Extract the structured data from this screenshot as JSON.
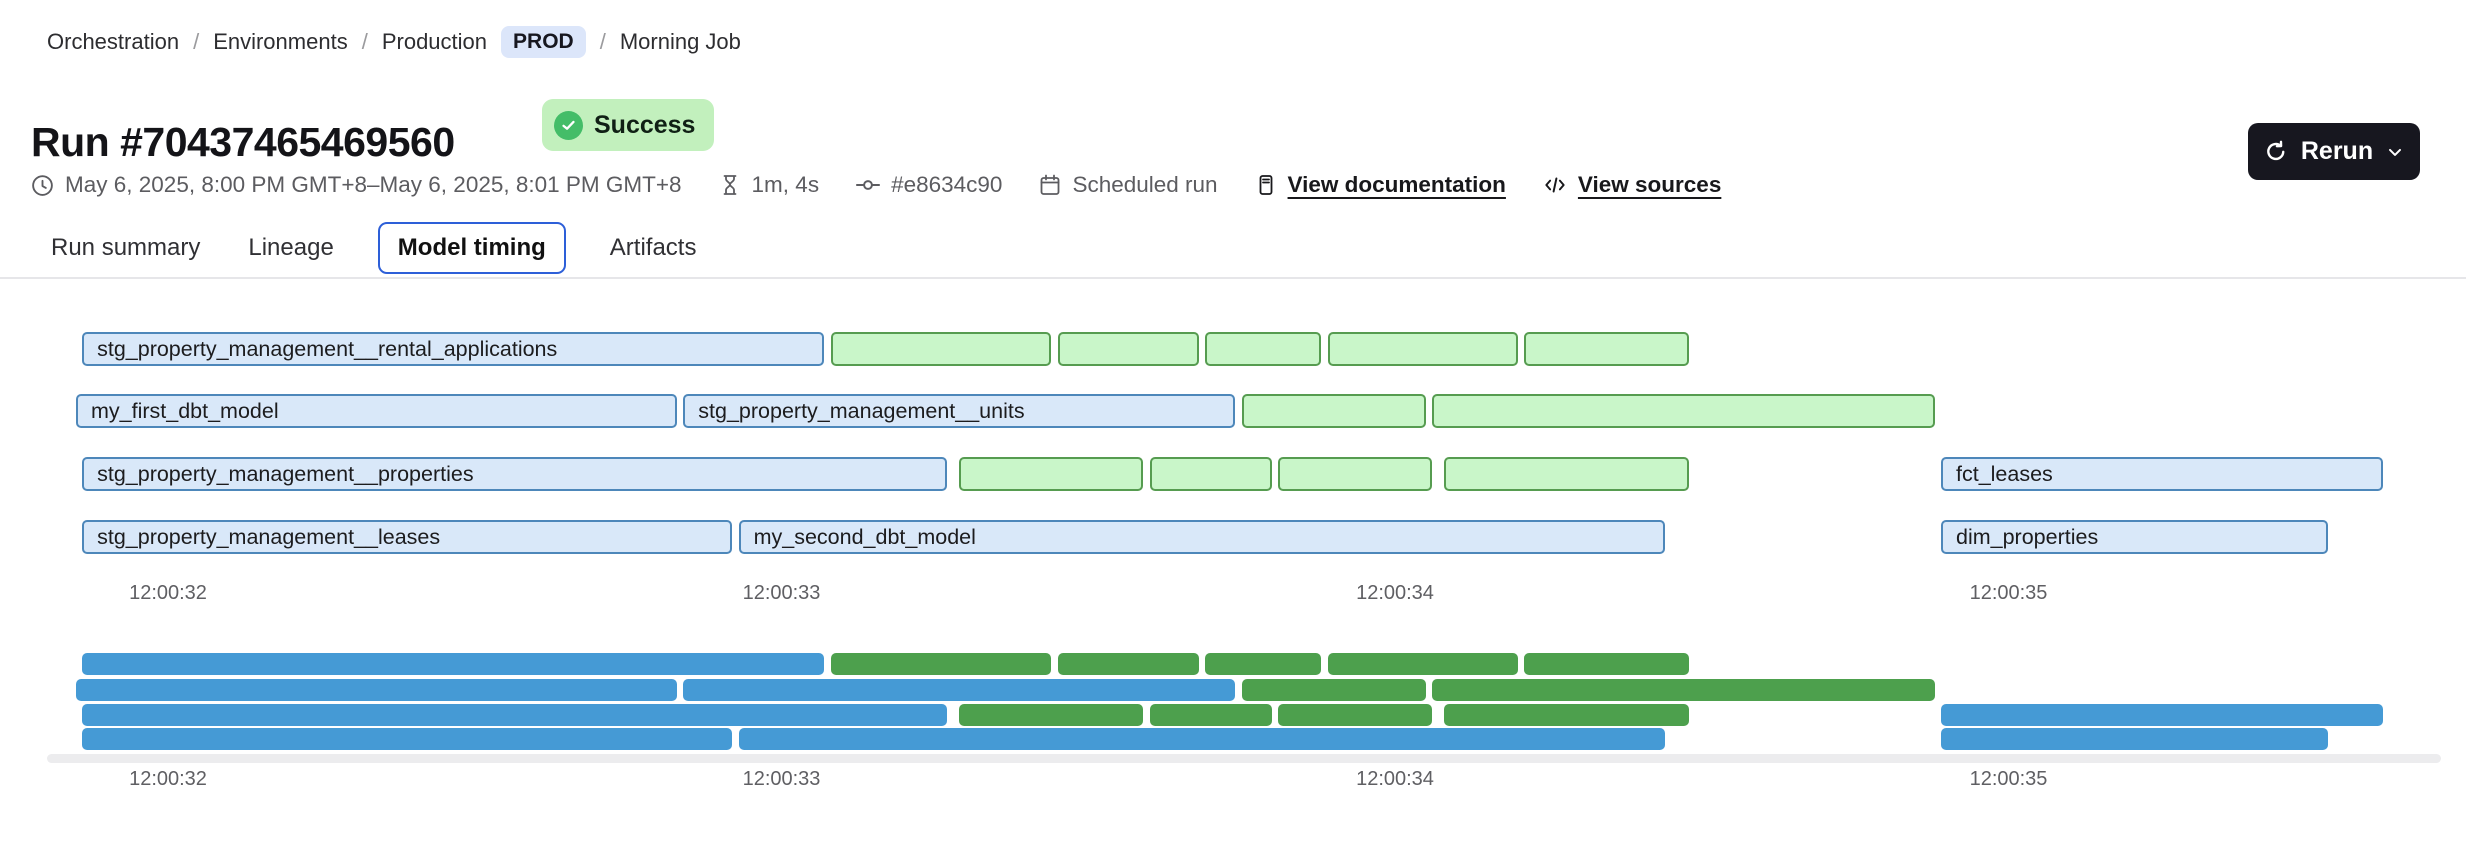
{
  "breadcrumb": {
    "separator": "/",
    "orchestration": "Orchestration",
    "environments": "Environments",
    "production": "Production",
    "prod_badge": "PROD",
    "job": "Morning Job"
  },
  "header": {
    "title": "Run #70437465469560",
    "status": "Success",
    "rerun": "Rerun"
  },
  "meta": {
    "time_range": "May 6, 2025, 8:00 PM GMT+8–May 6, 2025, 8:01 PM GMT+8",
    "duration": "1m, 4s",
    "commit_sha": "#e8634c90",
    "trigger": "Scheduled run",
    "view_documentation": "View documentation",
    "view_sources": "View sources"
  },
  "tabs": [
    {
      "label": "Run summary",
      "active": false
    },
    {
      "label": "Lineage",
      "active": false
    },
    {
      "label": "Model timing",
      "active": true
    },
    {
      "label": "Artifacts",
      "active": false
    }
  ],
  "colors": {
    "model_bar_fill": "#d9e8f9",
    "model_bar_border": "#4d87ba",
    "test_bar_fill": "#c9f6c9",
    "test_bar_border": "#569c50",
    "minimap_model": "#459ad5",
    "minimap_test": "#4da04d",
    "active_tab_border": "#2d5fd8",
    "status_badge_bg": "#c2f0bd",
    "status_badge_icon": "#44bd68",
    "env_badge_bg": "#dce6fa",
    "rerun_button_bg": "#17171f"
  },
  "chart_data": {
    "type": "gantt",
    "x_tick_labels": [
      "12:00:32",
      "12:00:33",
      "12:00:34",
      "12:00:35"
    ],
    "x_tick_values": [
      32,
      33,
      34,
      35
    ],
    "rows": [
      [
        {
          "label": "stg_property_management__rental_applications",
          "kind": "model",
          "start": 31.86,
          "end": 33.07
        },
        {
          "label": "",
          "kind": "test",
          "start": 33.08,
          "end": 33.44
        },
        {
          "label": "",
          "kind": "test",
          "start": 33.45,
          "end": 33.68
        },
        {
          "label": "",
          "kind": "test",
          "start": 33.69,
          "end": 33.88
        },
        {
          "label": "",
          "kind": "test",
          "start": 33.89,
          "end": 34.2
        },
        {
          "label": "",
          "kind": "test",
          "start": 34.21,
          "end": 34.48
        }
      ],
      [
        {
          "label": "my_first_dbt_model",
          "kind": "model",
          "start": 31.85,
          "end": 32.83
        },
        {
          "label": "stg_property_management__units",
          "kind": "model",
          "start": 32.84,
          "end": 33.74
        },
        {
          "label": "",
          "kind": "test",
          "start": 33.75,
          "end": 34.05
        },
        {
          "label": "",
          "kind": "test",
          "start": 34.06,
          "end": 34.88
        }
      ],
      [
        {
          "label": "stg_property_management__properties",
          "kind": "model",
          "start": 31.86,
          "end": 33.27
        },
        {
          "label": "",
          "kind": "test",
          "start": 33.29,
          "end": 33.59
        },
        {
          "label": "",
          "kind": "test",
          "start": 33.6,
          "end": 33.8
        },
        {
          "label": "",
          "kind": "test",
          "start": 33.81,
          "end": 34.06
        },
        {
          "label": "",
          "kind": "test",
          "start": 34.08,
          "end": 34.48
        },
        {
          "label": "fct_leases",
          "kind": "model",
          "start": 34.89,
          "end": 35.61
        }
      ],
      [
        {
          "label": "stg_property_management__leases",
          "kind": "model",
          "start": 31.86,
          "end": 32.92
        },
        {
          "label": "my_second_dbt_model",
          "kind": "model",
          "start": 32.93,
          "end": 34.44
        },
        {
          "label": "dim_properties",
          "kind": "model",
          "start": 34.89,
          "end": 35.52
        }
      ]
    ]
  }
}
